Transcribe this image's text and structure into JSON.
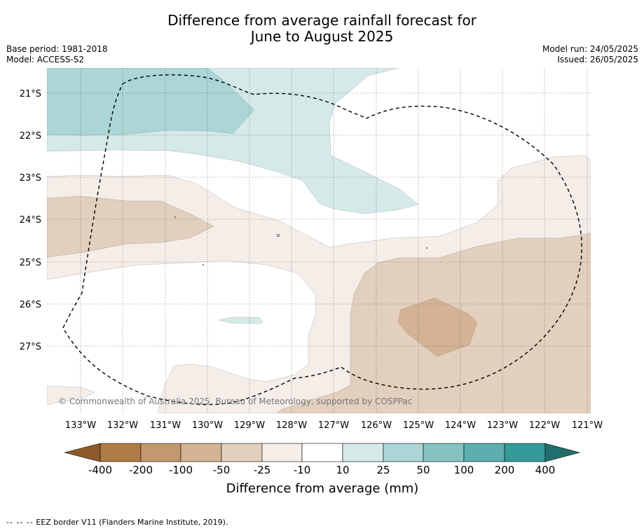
{
  "title_line1": "Difference from average rainfall forecast for",
  "title_line2": "June to August 2025",
  "meta_left": {
    "base_period": "Base period: 1981-2018",
    "model": "Model: ACCESS-S2"
  },
  "meta_right": {
    "model_run": "Model run: 24/05/2025",
    "issued": "Issued: 26/05/2025"
  },
  "map": {
    "copyright": "© Commonwealth of Australia 2025, Bureau of Meteorology, supported by COSPPac",
    "lat_labels": [
      "21°S",
      "22°S",
      "23°S",
      "24°S",
      "25°S",
      "26°S",
      "27°S"
    ],
    "lon_labels": [
      "133°W",
      "132°W",
      "131°W",
      "130°W",
      "129°W",
      "128°W",
      "127°W",
      "126°W",
      "125°W",
      "124°W",
      "123°W",
      "122°W",
      "121°W"
    ]
  },
  "colorbar": {
    "label": "Difference from average (mm)",
    "ticks": [
      "-400",
      "-200",
      "-100",
      "-50",
      "-25",
      "-10",
      "10",
      "25",
      "50",
      "100",
      "200",
      "400"
    ],
    "colors": [
      "#8f5a2b",
      "#b07b44",
      "#c4986e",
      "#d4b394",
      "#e3cfbd",
      "#f4ede8",
      "#ffffff",
      "#d5e9e8",
      "#acd5d5",
      "#86c2c2",
      "#5daeae",
      "#339b9a",
      "#216f6d"
    ]
  },
  "footer": {
    "dashes": "-- -- --",
    "text": "EEZ border V11 (Flanders Marine Institute, 2019)."
  }
}
